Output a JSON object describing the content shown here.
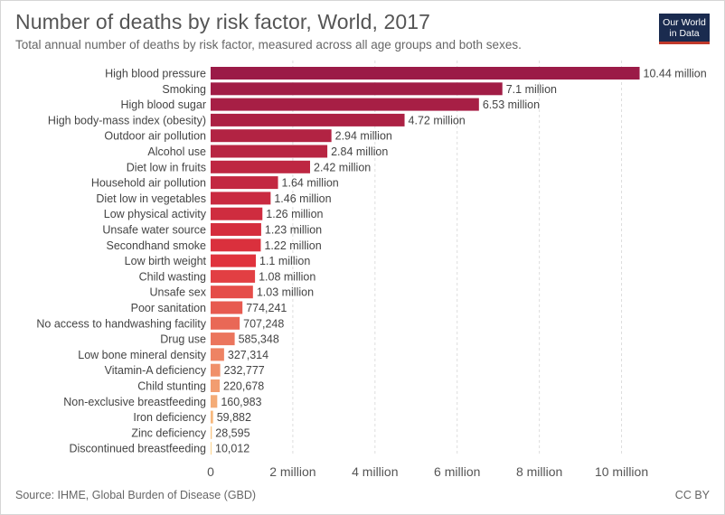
{
  "header": {
    "title": "Number of deaths by risk factor, World, 2017",
    "subtitle": "Total annual number of deaths by risk factor, measured across all age groups and both sexes.",
    "logo_line1": "Our World",
    "logo_line2": "in Data"
  },
  "footer": {
    "source": "Source: IHME, Global Burden of Disease (GBD)",
    "license": "CC BY"
  },
  "colors": {
    "low": "#fbd38a",
    "mid": "#e0323c",
    "high": "#9b1b47"
  },
  "chart_data": {
    "type": "bar",
    "orientation": "horizontal",
    "xlim": [
      0,
      11000000
    ],
    "x_ticks": [
      0,
      2000000,
      4000000,
      6000000,
      8000000,
      10000000
    ],
    "x_tick_labels": [
      "0",
      "2 million",
      "4 million",
      "6 million",
      "8 million",
      "10 million"
    ],
    "grid": true,
    "categories": [
      "High blood pressure",
      "Smoking",
      "High blood sugar",
      "High body-mass index (obesity)",
      "Outdoor air pollution",
      "Alcohol use",
      "Diet low in fruits",
      "Household air pollution",
      "Diet low in vegetables",
      "Low physical activity",
      "Unsafe water source",
      "Secondhand smoke",
      "Low birth weight",
      "Child wasting",
      "Unsafe sex",
      "Poor sanitation",
      "No access to handwashing facility",
      "Drug use",
      "Low bone mineral density",
      "Vitamin-A deficiency",
      "Child stunting",
      "Non-exclusive breastfeeding",
      "Iron deficiency",
      "Zinc deficiency",
      "Discontinued breastfeeding"
    ],
    "values": [
      10440000,
      7100000,
      6530000,
      4720000,
      2940000,
      2840000,
      2420000,
      1640000,
      1460000,
      1260000,
      1230000,
      1220000,
      1100000,
      1080000,
      1030000,
      774241,
      707248,
      585348,
      327314,
      232777,
      220678,
      160983,
      59882,
      28595,
      10012
    ],
    "value_labels": [
      "10.44 million",
      "7.1 million",
      "6.53 million",
      "4.72 million",
      "2.94 million",
      "2.84 million",
      "2.42 million",
      "1.64 million",
      "1.46 million",
      "1.26 million",
      "1.23 million",
      "1.22 million",
      "1.1 million",
      "1.08 million",
      "1.03 million",
      "774,241",
      "707,248",
      "585,348",
      "327,314",
      "232,777",
      "220,678",
      "160,983",
      "59,882",
      "28,595",
      "10,012"
    ]
  }
}
